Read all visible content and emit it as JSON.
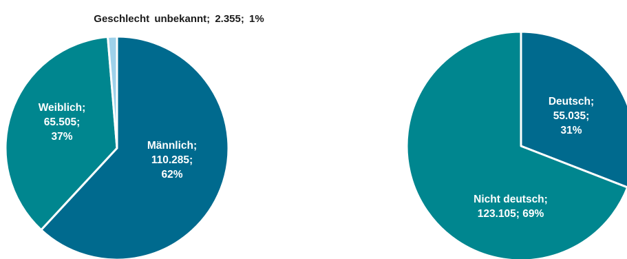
{
  "chart_data": [
    {
      "type": "pie",
      "slices": [
        {
          "label": "Männlich",
          "value": 110285,
          "percent": 62,
          "color": "#006a8e",
          "text_lines": [
            "Männlich;",
            "110.285;",
            "62%"
          ]
        },
        {
          "label": "Weiblich",
          "value": 65505,
          "percent": 37,
          "color": "#00868f",
          "text_lines": [
            "Weiblich;",
            "65.505;",
            "37%"
          ]
        },
        {
          "label": "Geschlecht unbekannt",
          "value": 2355,
          "percent": 1,
          "color": "#9ed1ea",
          "text_lines": [
            "Geschlecht unbekannt; 2.355; 1%"
          ]
        }
      ]
    },
    {
      "type": "pie",
      "slices": [
        {
          "label": "Deutsch",
          "value": 55035,
          "percent": 31,
          "color": "#006a8e",
          "text_lines": [
            "Deutsch;",
            "55.035;",
            "31%"
          ]
        },
        {
          "label": "Nicht deutsch",
          "value": 123105,
          "percent": 69,
          "color": "#00868f",
          "text_lines": [
            "Nicht deutsch;",
            "123.105; 69%"
          ]
        }
      ]
    }
  ]
}
